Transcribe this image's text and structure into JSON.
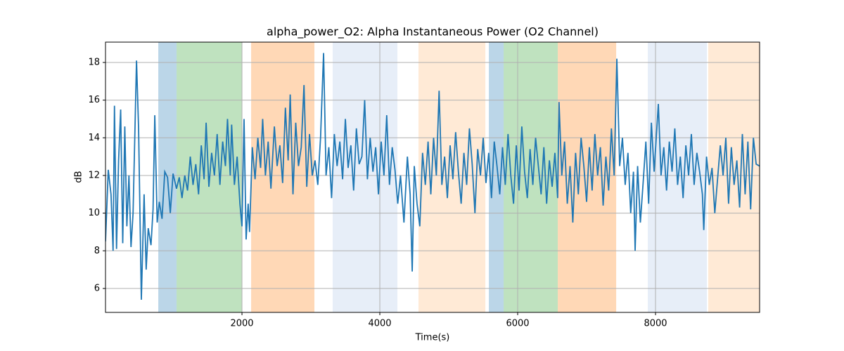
{
  "chart_data": {
    "type": "line",
    "title": "alpha_power_O2: Alpha Instantaneous Power (O2 Channel)",
    "x_label": "Time(s)",
    "y_label": "dB",
    "xlim": [
      20,
      9510
    ],
    "ylim": [
      4.73,
      19.08
    ],
    "xticks": [
      2000,
      4000,
      6000,
      8000
    ],
    "yticks": [
      6,
      8,
      10,
      12,
      14,
      16,
      18
    ],
    "grid": true,
    "region_alpha": 0.3,
    "regions": [
      {
        "start": 786,
        "end": 1051,
        "color": "#1f77b4"
      },
      {
        "start": 1051,
        "end": 2000,
        "color": "#2ca02c"
      },
      {
        "start": 2133,
        "end": 3051,
        "color": "#ff7f0e"
      },
      {
        "start": 3316,
        "end": 4255,
        "color": "#aec7e8"
      },
      {
        "start": 4561,
        "end": 5531,
        "color": "#ffbb78"
      },
      {
        "start": 5582,
        "end": 5796,
        "color": "#1f77b4"
      },
      {
        "start": 5796,
        "end": 6582,
        "color": "#2ca02c"
      },
      {
        "start": 6582,
        "end": 7429,
        "color": "#ff7f0e"
      },
      {
        "start": 7888,
        "end": 8745,
        "color": "#aec7e8"
      },
      {
        "start": 8765,
        "end": 9510,
        "color": "#ffbb78"
      }
    ],
    "series": [
      {
        "color": "#1f77b4",
        "x": [
          20,
          60,
          100,
          130,
          150,
          180,
          210,
          240,
          270,
          300,
          330,
          360,
          390,
          420,
          470,
          500,
          540,
          580,
          610,
          640,
          680,
          710,
          735,
          770,
          800,
          840,
          880,
          920,
          960,
          1000,
          1050,
          1090,
          1130,
          1170,
          1210,
          1250,
          1290,
          1330,
          1370,
          1410,
          1450,
          1480,
          1520,
          1560,
          1600,
          1640,
          1680,
          1720,
          1760,
          1790,
          1830,
          1850,
          1890,
          1930,
          1970,
          2000,
          2030,
          2060,
          2090,
          2110,
          2150,
          2190,
          2230,
          2270,
          2300,
          2340,
          2380,
          2420,
          2470,
          2510,
          2550,
          2590,
          2630,
          2670,
          2700,
          2740,
          2780,
          2820,
          2860,
          2900,
          2940,
          2980,
          3020,
          3060,
          3100,
          3140,
          3184,
          3220,
          3260,
          3300,
          3340,
          3380,
          3420,
          3460,
          3500,
          3540,
          3580,
          3620,
          3660,
          3700,
          3740,
          3780,
          3820,
          3860,
          3900,
          3940,
          3980,
          4020,
          4060,
          4100,
          4140,
          4180,
          4220,
          4260,
          4300,
          4350,
          4400,
          4440,
          4470,
          4500,
          4540,
          4580,
          4620,
          4660,
          4700,
          4740,
          4780,
          4820,
          4860,
          4900,
          4940,
          4980,
          5020,
          5060,
          5100,
          5140,
          5180,
          5220,
          5260,
          5300,
          5340,
          5380,
          5420,
          5460,
          5500,
          5540,
          5580,
          5620,
          5660,
          5700,
          5740,
          5780,
          5820,
          5860,
          5900,
          5940,
          5980,
          6020,
          6060,
          6100,
          6140,
          6180,
          6220,
          6260,
          6300,
          6340,
          6380,
          6420,
          6460,
          6500,
          6540,
          6580,
          6600,
          6640,
          6680,
          6720,
          6760,
          6800,
          6840,
          6880,
          6920,
          6960,
          7000,
          7040,
          7080,
          7120,
          7160,
          7200,
          7240,
          7280,
          7320,
          7360,
          7400,
          7439,
          7480,
          7520,
          7560,
          7600,
          7640,
          7680,
          7704,
          7740,
          7780,
          7820,
          7860,
          7900,
          7940,
          7980,
          8041,
          8080,
          8120,
          8160,
          8200,
          8240,
          8280,
          8320,
          8360,
          8400,
          8440,
          8480,
          8520,
          8560,
          8600,
          8640,
          8680,
          8700,
          8740,
          8780,
          8820,
          8860,
          8900,
          8940,
          8980,
          9020,
          9060,
          9100,
          9140,
          9180,
          9220,
          9260,
          9300,
          9340,
          9380,
          9420,
          9460,
          9510
        ],
        "values": [
          8.5,
          12.3,
          11.0,
          8.0,
          15.7,
          8.1,
          12.8,
          15.5,
          8.4,
          14.6,
          9.3,
          12.0,
          8.2,
          10.0,
          18.1,
          14.5,
          5.4,
          11.0,
          7.0,
          9.2,
          8.3,
          10.2,
          15.2,
          9.5,
          10.6,
          9.7,
          12.2,
          11.9,
          10.0,
          12.1,
          11.3,
          11.9,
          10.8,
          12.0,
          11.2,
          13.0,
          11.5,
          12.6,
          11.0,
          13.6,
          11.8,
          14.8,
          11.4,
          13.2,
          12.0,
          14.2,
          11.5,
          13.8,
          12.5,
          15.0,
          12.0,
          14.7,
          11.5,
          13.0,
          10.5,
          9.3,
          15.0,
          8.6,
          10.5,
          9.0,
          13.5,
          11.8,
          14.0,
          12.4,
          15.0,
          12.0,
          13.8,
          11.3,
          14.6,
          12.5,
          13.6,
          11.6,
          15.6,
          12.8,
          16.3,
          11.0,
          14.8,
          12.5,
          13.5,
          16.8,
          11.4,
          14.2,
          12.0,
          12.8,
          11.5,
          14.0,
          18.5,
          12.0,
          13.5,
          10.8,
          14.2,
          12.5,
          13.8,
          11.8,
          15.0,
          12.4,
          13.6,
          11.2,
          14.5,
          12.6,
          13.0,
          16.0,
          11.8,
          14.0,
          12.2,
          13.5,
          11.0,
          13.8,
          12.0,
          15.2,
          11.5,
          13.5,
          12.3,
          10.5,
          12.0,
          9.5,
          13.0,
          11.0,
          6.9,
          12.5,
          10.5,
          9.3,
          13.2,
          11.5,
          13.8,
          11.0,
          14.0,
          12.0,
          16.5,
          11.5,
          13.0,
          10.8,
          13.6,
          11.8,
          14.3,
          12.2,
          10.5,
          13.2,
          11.5,
          14.5,
          12.6,
          10.0,
          13.4,
          12.0,
          14.0,
          11.6,
          13.2,
          10.8,
          13.8,
          12.5,
          11.0,
          13.5,
          11.5,
          14.2,
          12.0,
          10.5,
          13.6,
          11.2,
          14.6,
          12.2,
          10.8,
          13.4,
          11.5,
          14.0,
          12.5,
          11.0,
          13.5,
          10.5,
          12.8,
          11.4,
          13.2,
          10.8,
          15.9,
          12.0,
          13.8,
          10.5,
          12.5,
          9.5,
          13.2,
          11.0,
          14.0,
          12.5,
          10.6,
          13.5,
          11.2,
          14.2,
          12.0,
          13.5,
          10.4,
          13.0,
          11.2,
          14.5,
          12.0,
          18.2,
          12.5,
          14.0,
          11.5,
          13.2,
          10.0,
          12.2,
          8.0,
          12.5,
          9.5,
          11.6,
          13.8,
          10.5,
          14.8,
          12.2,
          15.8,
          12.0,
          13.5,
          11.2,
          13.8,
          12.2,
          14.5,
          11.5,
          13.0,
          10.8,
          13.6,
          12.0,
          14.2,
          11.5,
          13.2,
          12.2,
          11.0,
          9.1,
          13.0,
          11.5,
          12.4,
          10.0,
          11.8,
          13.6,
          12.0,
          14.0,
          10.5,
          13.5,
          11.5,
          12.8,
          10.3,
          14.2,
          11.0,
          13.8,
          10.2,
          14.0,
          12.6,
          12.5
        ]
      }
    ]
  }
}
